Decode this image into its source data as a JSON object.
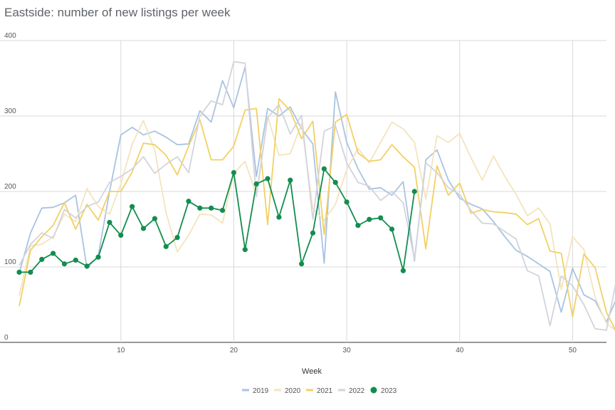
{
  "chart_data": {
    "type": "line",
    "title": "Eastside: number of new listings per week",
    "xlabel": "Week",
    "ylabel": "",
    "xlim": [
      1,
      53
    ],
    "ylim": [
      0,
      400
    ],
    "x_ticks": [
      10,
      20,
      30,
      40,
      50
    ],
    "y_ticks": [
      0,
      100,
      200,
      300,
      400
    ],
    "grid": true,
    "legend_position": "bottom",
    "series": [
      {
        "name": "2019",
        "color": "#a9c3e2",
        "width": 1.8,
        "markers": false,
        "values": [
          92,
          145,
          178,
          179,
          185,
          195,
          98,
          115,
          200,
          275,
          285,
          275,
          280,
          272,
          262,
          263,
          307,
          292,
          347,
          311,
          365,
          220,
          310,
          300,
          312,
          283,
          263,
          105,
          332,
          265,
          230,
          203,
          205,
          195,
          213,
          108,
          242,
          255,
          215,
          191,
          183,
          177,
          160,
          140,
          122,
          114,
          104,
          94,
          40,
          98,
          63,
          55,
          27,
          62
        ]
      },
      {
        "name": "2020",
        "color": "#f4e4bd",
        "width": 1.8,
        "markers": false,
        "values": [
          62,
          128,
          130,
          140,
          170,
          160,
          204,
          180,
          170,
          210,
          263,
          294,
          255,
          172,
          120,
          142,
          170,
          169,
          158,
          224,
          240,
          195,
          300,
          248,
          250,
          290,
          177,
          162,
          183,
          229,
          257,
          238,
          265,
          292,
          283,
          265,
          190,
          274,
          265,
          277,
          245,
          215,
          247,
          220,
          196,
          168,
          178,
          157,
          70,
          140,
          123,
          60,
          25,
          14
        ]
      },
      {
        "name": "2021",
        "color": "#f2d064",
        "width": 1.8,
        "markers": false,
        "values": [
          48,
          122,
          140,
          155,
          185,
          150,
          183,
          162,
          200,
          200,
          226,
          264,
          262,
          248,
          222,
          260,
          295,
          242,
          242,
          260,
          308,
          310,
          156,
          323,
          307,
          270,
          293,
          143,
          292,
          302,
          251,
          240,
          242,
          262,
          246,
          232,
          124,
          234,
          195,
          211,
          171,
          176,
          173,
          172,
          170,
          156,
          164,
          121,
          118,
          34,
          117,
          99,
          40,
          10
        ]
      },
      {
        "name": "2022",
        "color": "#d2d4dc",
        "width": 1.8,
        "markers": false,
        "values": [
          102,
          130,
          145,
          138,
          176,
          165,
          180,
          186,
          212,
          220,
          230,
          246,
          224,
          236,
          246,
          225,
          300,
          320,
          315,
          372,
          370,
          193,
          298,
          315,
          276,
          301,
          163,
          280,
          287,
          238,
          212,
          207,
          188,
          200,
          185,
          110,
          238,
          225,
          205,
          196,
          175,
          158,
          157,
          147,
          137,
          95,
          88,
          22,
          88,
          75,
          50,
          18,
          16,
          92
        ]
      },
      {
        "name": "2023",
        "color": "#138d4e",
        "width": 1.8,
        "markers": true,
        "values": [
          93,
          93,
          110,
          118,
          104,
          109,
          101,
          113,
          159,
          142,
          180,
          151,
          164,
          127,
          139,
          187,
          178,
          178,
          175,
          225,
          123,
          210,
          217,
          166,
          215,
          104,
          145,
          230,
          212,
          186,
          155,
          163,
          165,
          150,
          95,
          200
        ]
      }
    ]
  }
}
